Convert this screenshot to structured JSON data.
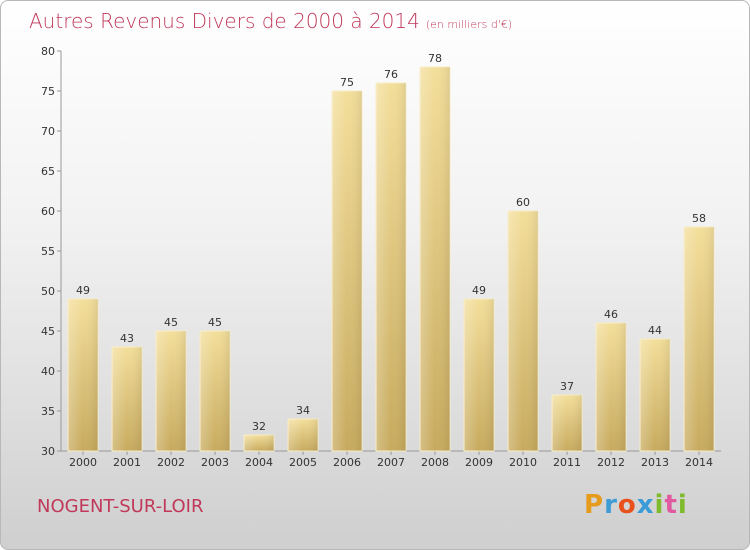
{
  "chart_data": {
    "type": "bar",
    "title": "Autres Revenus Divers de 2000 à 2014",
    "unit": "(en milliers d'€)",
    "categories": [
      "2000",
      "2001",
      "2002",
      "2003",
      "2004",
      "2005",
      "2006",
      "2007",
      "2008",
      "2009",
      "2010",
      "2011",
      "2012",
      "2013",
      "2014"
    ],
    "values": [
      49,
      43,
      45,
      45,
      32,
      34,
      75,
      76,
      78,
      49,
      60,
      37,
      46,
      44,
      58
    ],
    "ylim": [
      30,
      80
    ],
    "yticks": [
      30,
      35,
      40,
      45,
      50,
      55,
      60,
      65,
      70,
      75,
      80
    ],
    "grid": false,
    "bar_color": "#e8cf86"
  },
  "location": "NOGENT-SUR-LOIR",
  "brand": [
    "P",
    "r",
    "o",
    "x",
    "i",
    "t",
    "i"
  ]
}
